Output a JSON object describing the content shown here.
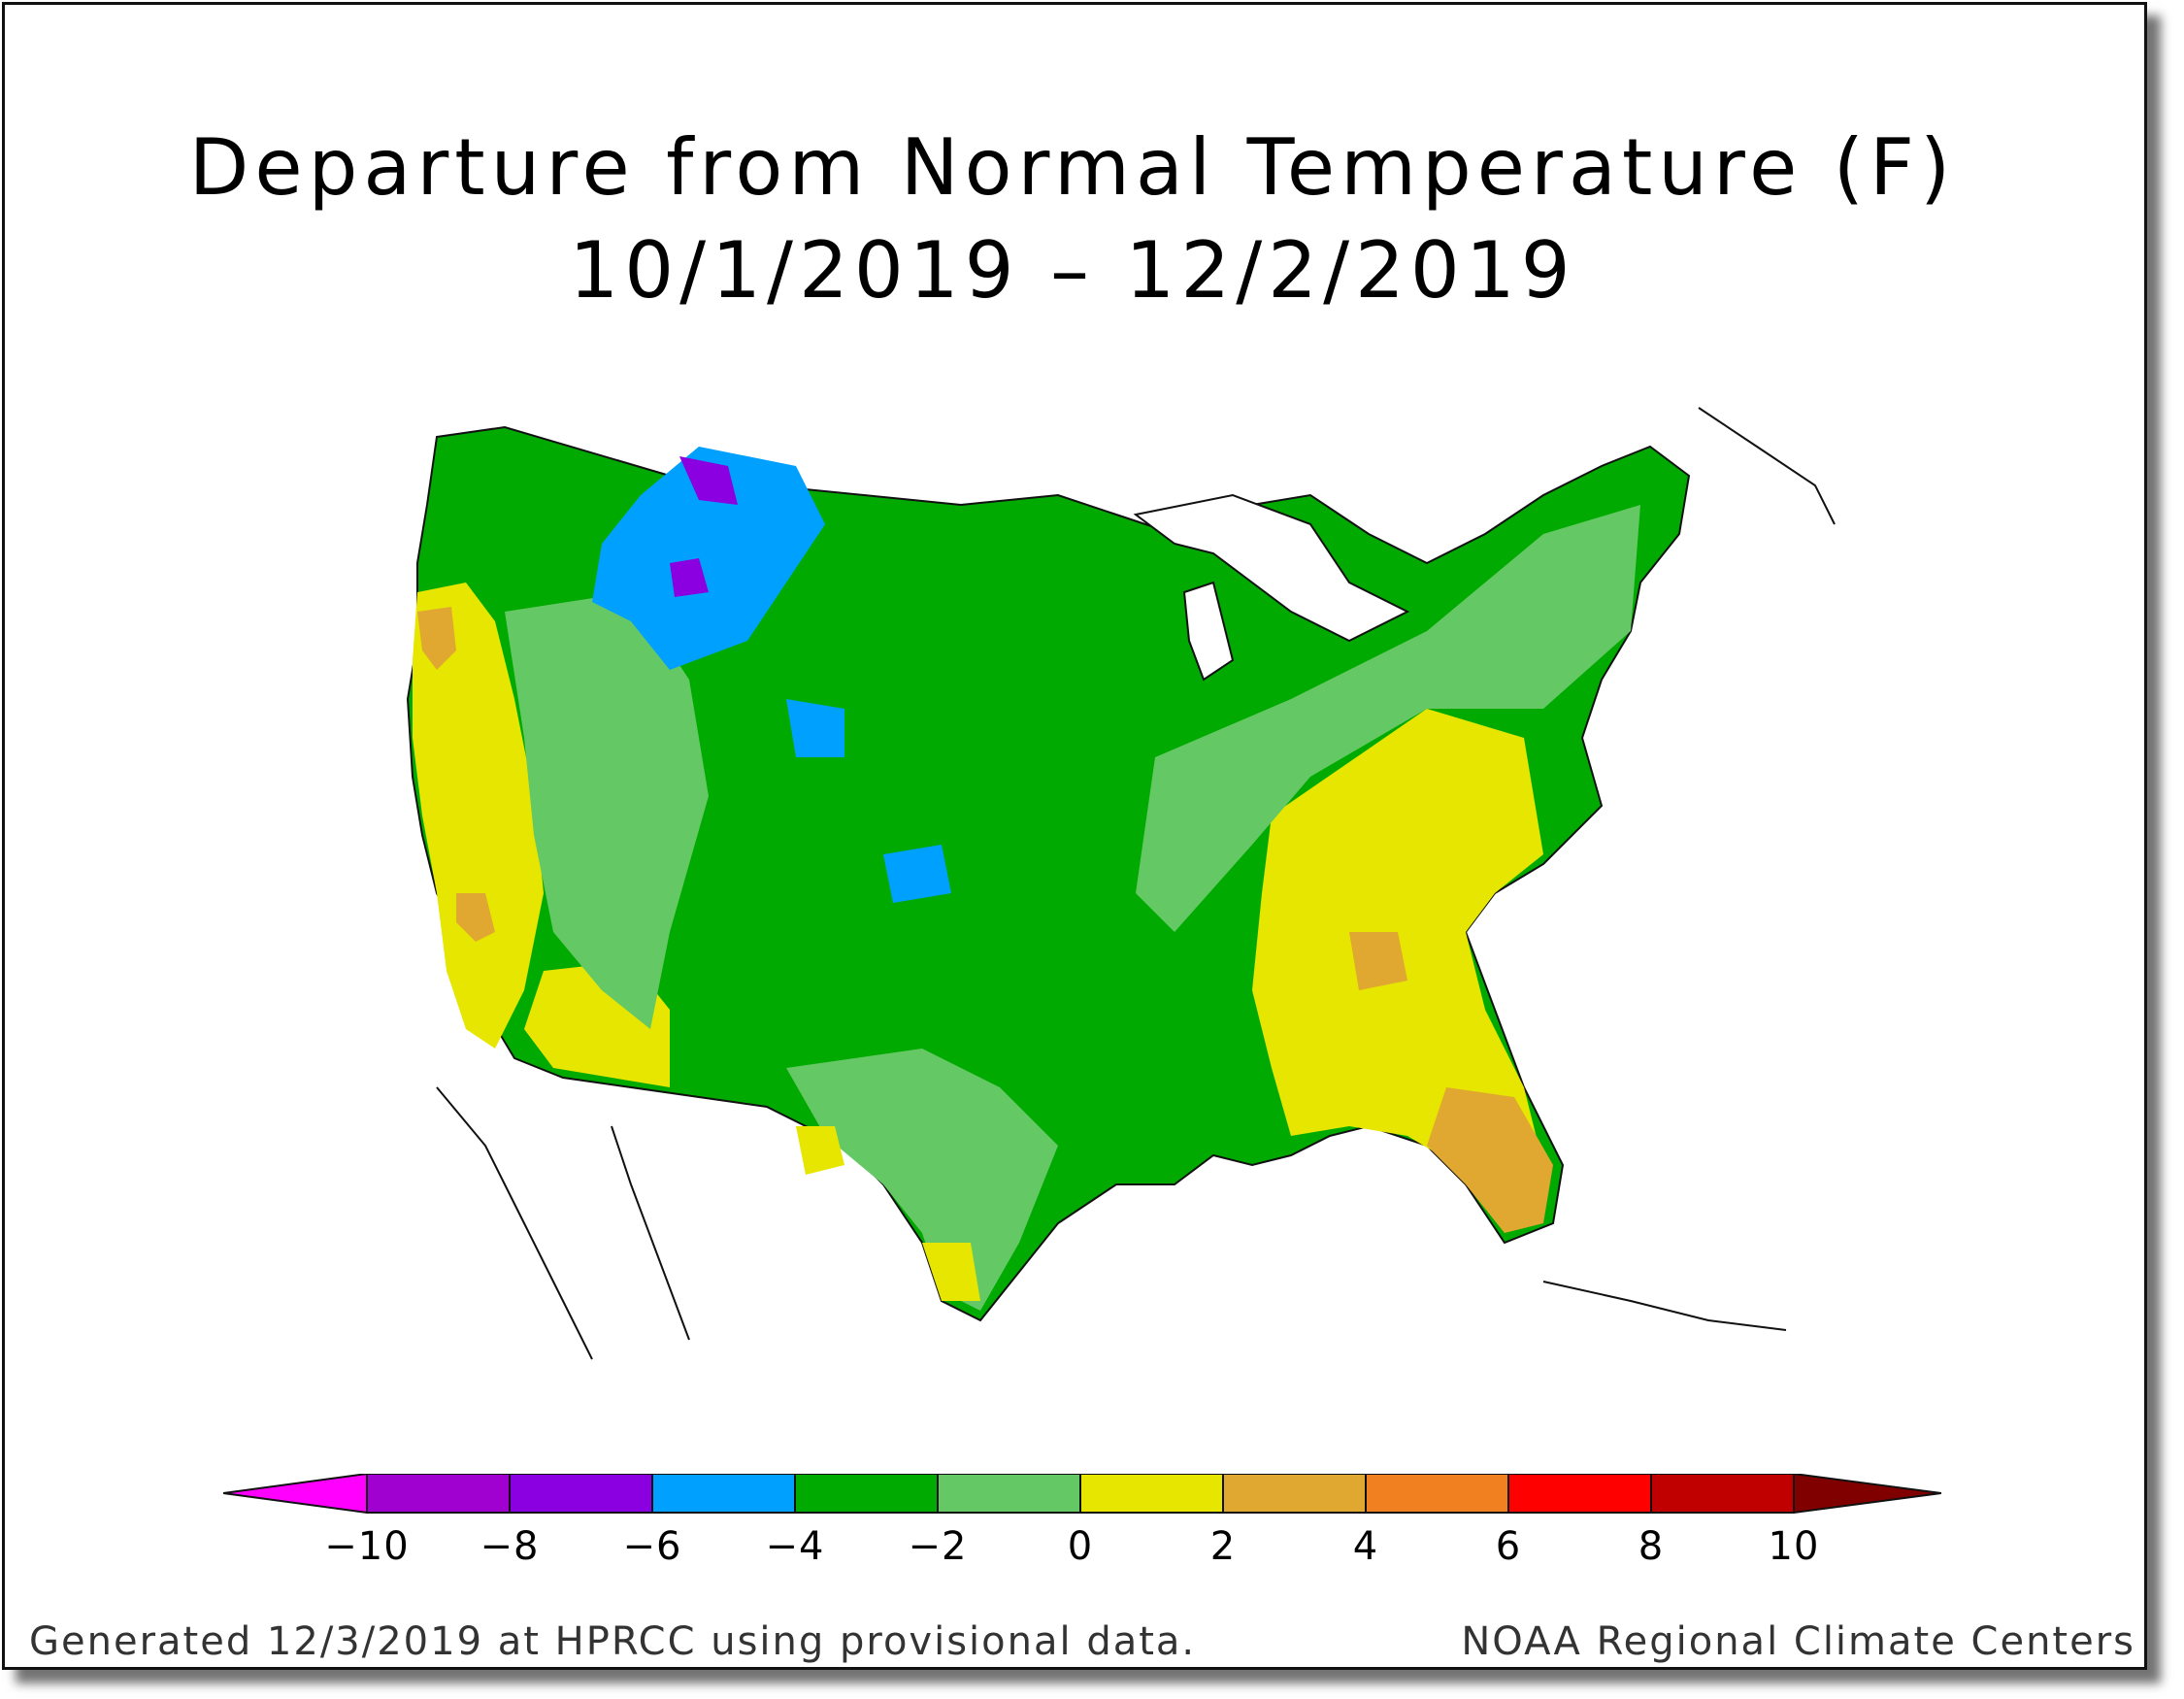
{
  "title": {
    "line1": "Departure from Normal Temperature (F)",
    "line2": "10/1/2019 – 12/2/2019"
  },
  "legend": {
    "tick_labels": [
      "−10",
      "−8",
      "−6",
      "−4",
      "−2",
      "0",
      "2",
      "4",
      "6",
      "8",
      "10"
    ],
    "colors": [
      "#ff00ff",
      "#a000d0",
      "#8a00e0",
      "#00a0ff",
      "#00aa00",
      "#64c864",
      "#e6e600",
      "#e0a830",
      "#f08020",
      "#ff0000",
      "#c00000",
      "#800000"
    ]
  },
  "footer": {
    "left": "Generated 12/3/2019 at HPRCC using provisional data.",
    "right": "NOAA Regional Climate Centers"
  },
  "regions": {
    "west_coast": "yellow/orange (0 to +4)",
    "northern_plains": "blue/purple (−4 to −8)",
    "central_us": "green (−2 to −4)",
    "southeast": "yellow to orange (0 to +4)",
    "florida": "orange (+2 to +6)"
  }
}
